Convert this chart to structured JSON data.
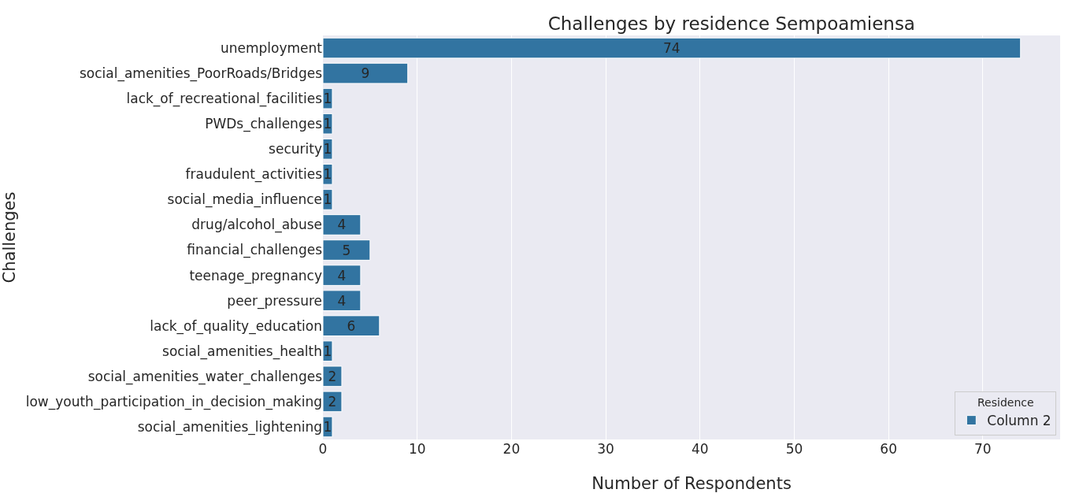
{
  "chart_data": {
    "type": "bar",
    "orientation": "horizontal",
    "title": "Challenges by residence Sempoamiensa",
    "xlabel": "Number of Respondents",
    "ylabel": "Challenges",
    "legend_title": "Residence",
    "categories": [
      "unemployment",
      "social_amenities_PoorRoads/Bridges",
      "lack_of_recreational_facilities",
      "PWDs_challenges",
      "security",
      "fraudulent_activities",
      "social_media_influence",
      "drug/alcohol_abuse",
      "financial_challenges",
      "teenage_pregnancy",
      "peer_pressure",
      "lack_of_quality_education",
      "social_amenities_health",
      "social_amenities_water_challenges",
      "low_youth_participation_in_decision_making",
      "social_amenities_lightening"
    ],
    "series": [
      {
        "name": "Column 2",
        "color": "#3274a1",
        "values": [
          74,
          9,
          1,
          1,
          1,
          1,
          1,
          4,
          5,
          4,
          4,
          6,
          1,
          2,
          2,
          1
        ]
      }
    ],
    "xlim": [
      0,
      78.2
    ],
    "xticks": [
      0,
      10,
      20,
      30,
      40,
      50,
      60,
      70
    ],
    "grid": "x",
    "legend": "bottom right",
    "data_labels": true
  }
}
